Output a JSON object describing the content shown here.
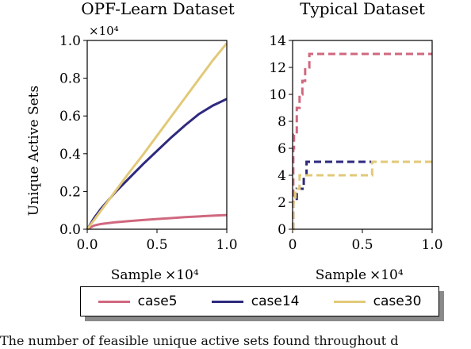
{
  "colors": {
    "case5": "#d0687f",
    "case14": "#2e2a7e",
    "case30": "#e2c979"
  },
  "chart_data": [
    {
      "type": "line",
      "title": "OPF-Learn Dataset",
      "xlabel": "Sample",
      "ylabel": "Unique Active Sets",
      "x_multiplier": "×10⁴",
      "y_multiplier": "×10⁴",
      "xlim": [
        0,
        1.0
      ],
      "ylim": [
        0,
        1.0
      ],
      "xticks": [
        "0.0",
        "0.5",
        "1.0"
      ],
      "yticks": [
        "0.0",
        "0.2",
        "0.4",
        "0.6",
        "0.8",
        "1.0"
      ],
      "grid": false,
      "series": [
        {
          "name": "case5",
          "x": [
            0,
            0.05,
            0.1,
            0.2,
            0.3,
            0.4,
            0.5,
            0.6,
            0.7,
            0.8,
            0.9,
            1.0
          ],
          "y": [
            0,
            0.02,
            0.028,
            0.037,
            0.043,
            0.049,
            0.054,
            0.059,
            0.064,
            0.068,
            0.072,
            0.075
          ]
        },
        {
          "name": "case14",
          "x": [
            0,
            0.05,
            0.1,
            0.2,
            0.3,
            0.4,
            0.5,
            0.6,
            0.7,
            0.8,
            0.9,
            1.0
          ],
          "y": [
            0,
            0.06,
            0.11,
            0.195,
            0.27,
            0.345,
            0.415,
            0.485,
            0.55,
            0.61,
            0.655,
            0.69
          ]
        },
        {
          "name": "case30",
          "x": [
            0,
            0.05,
            0.1,
            0.2,
            0.3,
            0.4,
            0.5,
            0.6,
            0.7,
            0.8,
            0.9,
            1.0
          ],
          "y": [
            0,
            0.05,
            0.1,
            0.2,
            0.3,
            0.395,
            0.495,
            0.595,
            0.695,
            0.795,
            0.895,
            0.985
          ]
        }
      ]
    },
    {
      "type": "line",
      "title": "Typical Dataset",
      "xlabel": "Sample",
      "ylabel": "",
      "x_multiplier": "×10⁴",
      "xlim": [
        0,
        1.0
      ],
      "ylim": [
        0,
        14
      ],
      "xticks": [
        "0",
        "0.5",
        "1.0"
      ],
      "yticks": [
        "0",
        "2",
        "4",
        "6",
        "8",
        "10",
        "12",
        "14"
      ],
      "grid": false,
      "line_style": "dashed step",
      "series": [
        {
          "name": "case5",
          "x": [
            0,
            0.005,
            0.01,
            0.03,
            0.05,
            0.07,
            0.09,
            0.12,
            1.0
          ],
          "y": [
            0,
            6,
            7,
            9,
            10,
            11,
            12,
            13,
            13
          ]
        },
        {
          "name": "case14",
          "x": [
            0,
            0.005,
            0.03,
            0.06,
            0.08,
            0.1,
            1.0
          ],
          "y": [
            0,
            2,
            3,
            3,
            4,
            5,
            5
          ]
        },
        {
          "name": "case30",
          "x": [
            0,
            0.005,
            0.02,
            0.04,
            0.05,
            0.57,
            1.0
          ],
          "y": [
            0,
            2,
            3,
            3,
            4,
            5,
            5
          ]
        }
      ]
    }
  ],
  "legend": [
    {
      "key": "case5",
      "label": "case5"
    },
    {
      "key": "case14",
      "label": "case14"
    },
    {
      "key": "case30",
      "label": "case30"
    }
  ],
  "caption": "The number of feasible unique active sets found throughout d"
}
